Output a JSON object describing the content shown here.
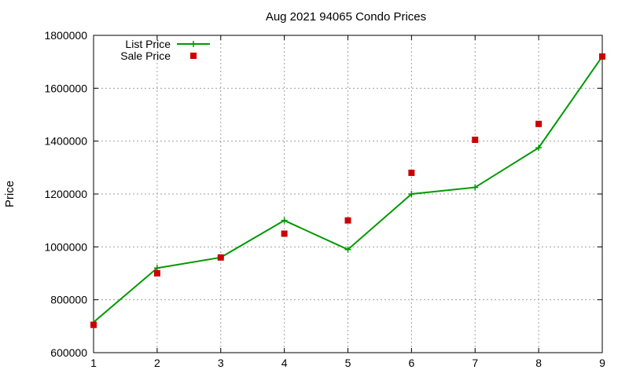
{
  "chart_data": {
    "type": "line",
    "title": "Aug 2021 94065 Condo Prices",
    "xlabel": "",
    "ylabel": "Price",
    "xlim": [
      1,
      9
    ],
    "ylim": [
      600000,
      1800000
    ],
    "x_ticks": [
      1,
      2,
      3,
      4,
      5,
      6,
      7,
      8,
      9
    ],
    "y_ticks": [
      600000,
      800000,
      1000000,
      1200000,
      1400000,
      1600000,
      1800000
    ],
    "grid": true,
    "legend_position": "top-left",
    "series": [
      {
        "name": "List Price",
        "style": "line-with-plus-markers",
        "color": "#009900",
        "x": [
          1,
          2,
          3,
          4,
          5,
          6,
          7,
          8,
          9
        ],
        "values": [
          715000,
          920000,
          960000,
          1100000,
          990000,
          1200000,
          1225000,
          1375000,
          1720000
        ]
      },
      {
        "name": "Sale Price",
        "style": "square-markers",
        "color": "#cc0000",
        "x": [
          1,
          2,
          3,
          4,
          5,
          6,
          7,
          8,
          9
        ],
        "values": [
          705000,
          900000,
          960000,
          1050000,
          1100000,
          1280000,
          1405000,
          1465000,
          1720000
        ]
      }
    ]
  }
}
